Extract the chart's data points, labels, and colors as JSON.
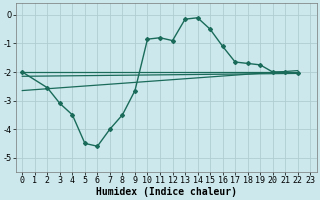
{
  "xlabel": "Humidex (Indice chaleur)",
  "ylabel": "",
  "bg_color": "#cce8ec",
  "grid_color": "#b0cdd2",
  "line_color": "#1a6b5a",
  "xlim": [
    -0.5,
    23.5
  ],
  "ylim": [
    -5.5,
    0.4
  ],
  "xticks": [
    0,
    1,
    2,
    3,
    4,
    5,
    6,
    7,
    8,
    9,
    10,
    11,
    12,
    13,
    14,
    15,
    16,
    17,
    18,
    19,
    20,
    21,
    22,
    23
  ],
  "yticks": [
    0,
    -1,
    -2,
    -3,
    -4,
    -5
  ],
  "main_x": [
    0,
    2,
    3,
    4,
    5,
    6,
    7,
    8,
    9,
    10,
    11,
    12,
    13,
    14,
    15,
    16,
    17,
    18,
    19,
    20,
    21,
    22
  ],
  "main_y": [
    -2.0,
    -2.55,
    -3.1,
    -3.5,
    -4.5,
    -4.6,
    -4.0,
    -3.5,
    -2.65,
    -0.85,
    -0.8,
    -0.9,
    -0.15,
    -0.1,
    -0.5,
    -1.1,
    -1.65,
    -1.7,
    -1.75,
    -2.0,
    -2.0,
    -2.05
  ],
  "line1_x": [
    0,
    22
  ],
  "line1_y": [
    -2.0,
    -2.0
  ],
  "line2_x": [
    0,
    22
  ],
  "line2_y": [
    -2.15,
    -2.05
  ],
  "line3_x": [
    0,
    22
  ],
  "line3_y": [
    -2.65,
    -1.95
  ],
  "xlabel_fontsize": 7,
  "tick_fontsize": 6,
  "ylabel_fontsize": 7
}
